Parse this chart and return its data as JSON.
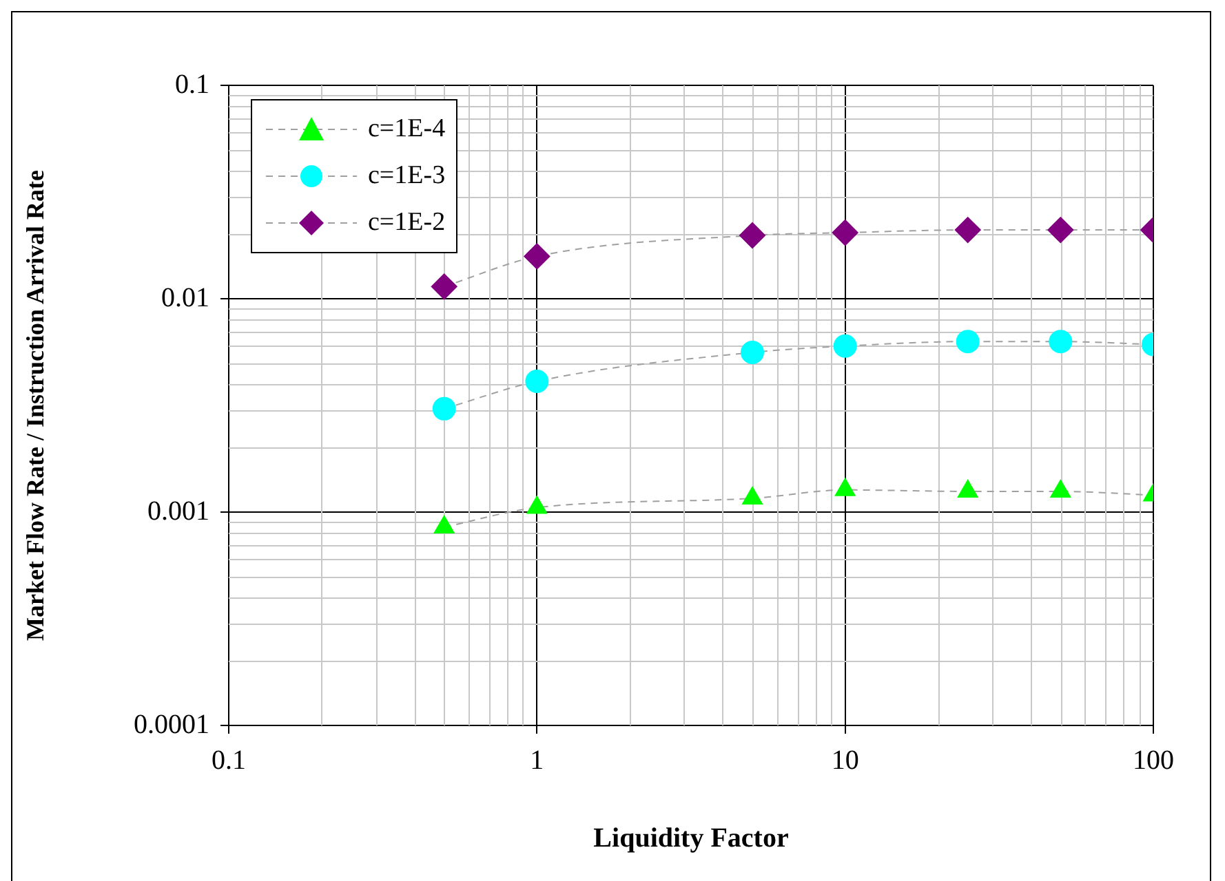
{
  "chart_data": {
    "type": "line",
    "xlabel": "Liquidity Factor",
    "ylabel": "Market Flow Rate / Instruction Arrival Rate",
    "log": "xy",
    "xlim": [
      0.1,
      100
    ],
    "xticks": [
      0.1,
      1,
      10,
      100
    ],
    "ylim": [
      0.0001,
      0.1
    ],
    "yticks": [
      0.0001,
      0.001,
      0.01,
      0.1
    ],
    "grid": true,
    "legend": "top left",
    "line_style": "dashed",
    "series": [
      {
        "name": "c=1E-4",
        "color": "#00ff00",
        "marker": "triangle",
        "x": [
          0.5,
          1,
          5,
          10,
          25,
          50,
          100
        ],
        "values": [
          0.00085,
          0.00105,
          0.00116,
          0.00127,
          0.00125,
          0.00125,
          0.0012
        ]
      },
      {
        "name": "c=1E-3",
        "color": "#00ffff",
        "marker": "circle",
        "x": [
          0.5,
          1,
          5,
          10,
          25,
          50,
          100
        ],
        "values": [
          0.00305,
          0.0041,
          0.0056,
          0.006,
          0.0063,
          0.0063,
          0.0061
        ]
      },
      {
        "name": "c=1E-2",
        "color": "#800080",
        "marker": "diamond",
        "x": [
          0.5,
          1,
          5,
          10,
          25,
          50,
          100
        ],
        "values": [
          0.0114,
          0.0158,
          0.0198,
          0.0204,
          0.021,
          0.021,
          0.021
        ]
      }
    ]
  }
}
